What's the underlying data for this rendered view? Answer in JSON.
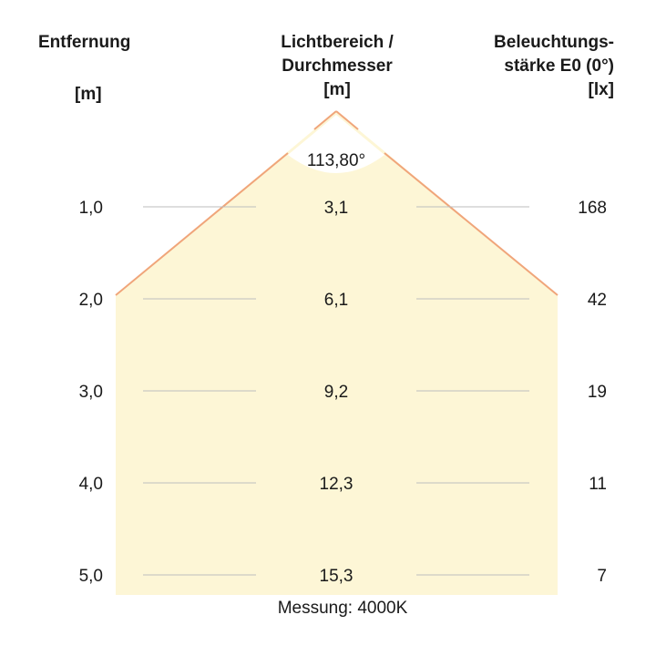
{
  "headers": {
    "distance": {
      "label": "Entfernung",
      "unit": "[m]"
    },
    "diameter": {
      "line1": "Lichtbereich /",
      "line2": "Durchmesser",
      "unit": "[m]"
    },
    "illuminance": {
      "line1": "Beleuchtungs-",
      "line2": "stärke E0 (0°)",
      "unit": "[lx]"
    }
  },
  "beam_angle": "113,80°",
  "rows": [
    {
      "distance": "1,0",
      "diameter": "3,1",
      "illuminance": "168"
    },
    {
      "distance": "2,0",
      "diameter": "6,1",
      "illuminance": "42"
    },
    {
      "distance": "3,0",
      "diameter": "9,2",
      "illuminance": "19"
    },
    {
      "distance": "4,0",
      "diameter": "12,3",
      "illuminance": "11"
    },
    {
      "distance": "5,0",
      "diameter": "15,3",
      "illuminance": "7"
    }
  ],
  "footer": "Messung: 4000K",
  "colors": {
    "beam_fill": "#fdf6d6",
    "beam_edge": "#f0a57a",
    "guide_line": "#bdbdbd",
    "text": "#1a1a1a"
  }
}
